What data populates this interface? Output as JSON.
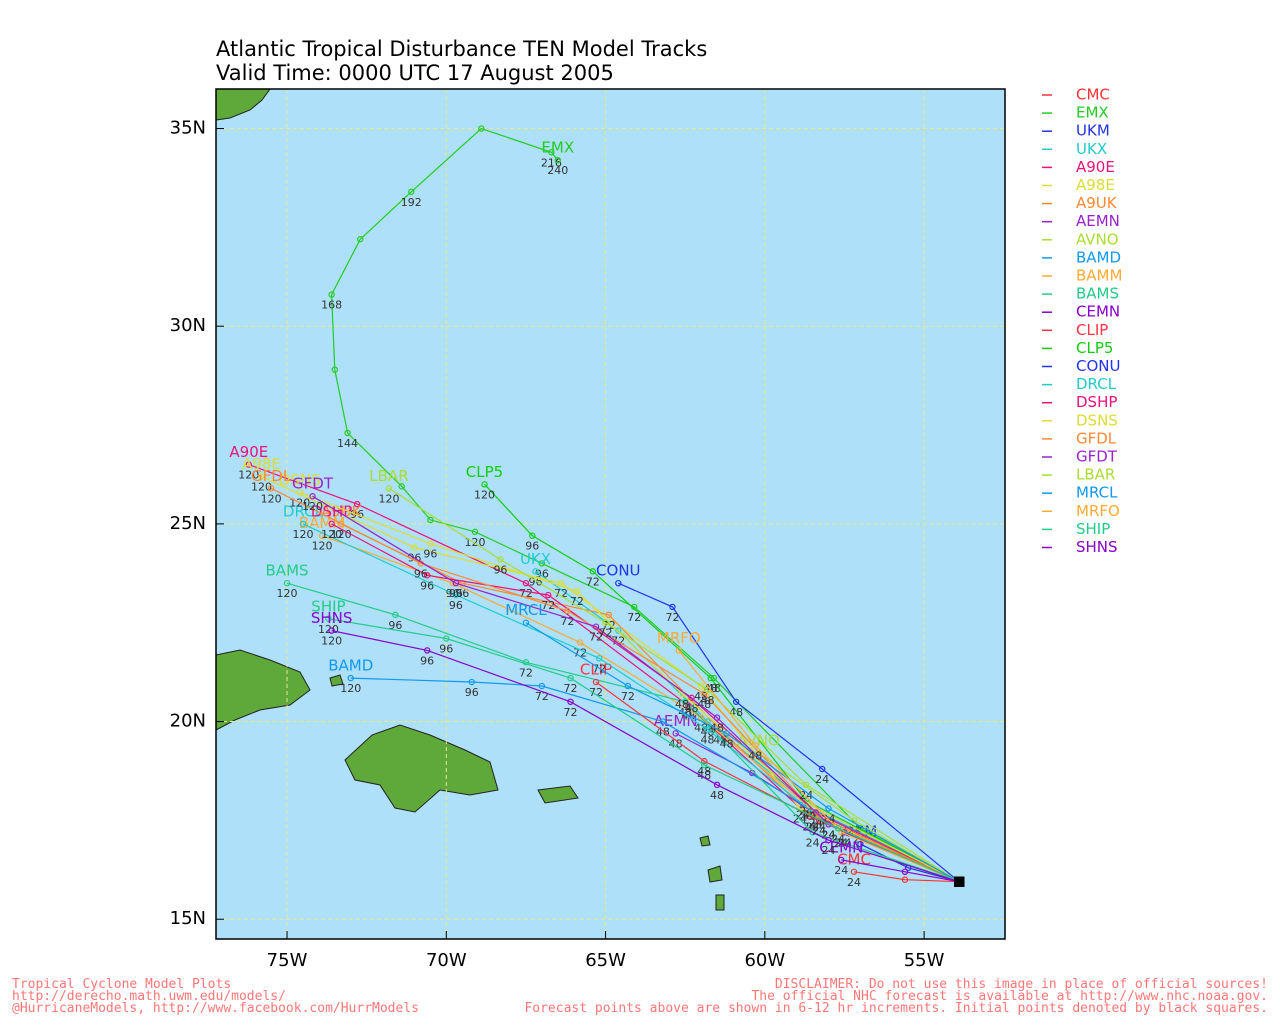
{
  "chart_data": {
    "type": "line",
    "title": "Atlantic Tropical Disturbance TEN Model Tracks",
    "subtitle": "Valid Time: 0000 UTC 17 August 2005",
    "xlim": [
      -77.23,
      -52.46
    ],
    "ylim": [
      14.5,
      36
    ],
    "xticks": [
      {
        "value": -75,
        "label": "75W"
      },
      {
        "value": -70,
        "label": "70W"
      },
      {
        "value": -65,
        "label": "65W"
      },
      {
        "value": -60,
        "label": "60W"
      },
      {
        "value": -55,
        "label": "55W"
      }
    ],
    "yticks": [
      {
        "value": 15,
        "label": "15N"
      },
      {
        "value": 20,
        "label": "20N"
      },
      {
        "value": 25,
        "label": "25N"
      },
      {
        "value": 30,
        "label": "30N"
      },
      {
        "value": 35,
        "label": "35N"
      }
    ],
    "grid": true,
    "legend": "right",
    "series": [
      {
        "name": "CMC",
        "color": "#ff3333",
        "x": [
          -53.9,
          -55.6,
          -57.2
        ],
        "values": [
          15.95,
          16.0,
          16.2
        ],
        "point_labels": [
          null,
          null,
          "24"
        ]
      },
      {
        "name": "EMX",
        "color": "#22cc22",
        "x": [
          -53.9,
          -57.0,
          -61.6,
          -64.1,
          -67.0,
          -69.1,
          -70.5,
          -71.4,
          -73.1,
          -73.5,
          -73.6,
          -72.7,
          -71.1,
          -68.9,
          -66.7,
          -66.5
        ],
        "values": [
          15.95,
          17.3,
          21.1,
          22.9,
          24.0,
          24.8,
          25.1,
          25.95,
          27.3,
          28.9,
          30.8,
          32.2,
          33.4,
          35.0,
          34.4,
          34.2
        ],
        "point_labels": [
          null,
          "24",
          "48",
          "72",
          "96",
          "120",
          null,
          null,
          "144",
          null,
          "168",
          null,
          "192",
          null,
          "216",
          "240"
        ]
      },
      {
        "name": "UKM",
        "color": "#2233dd",
        "x": [
          -53.9,
          -55.5,
          -57.0
        ],
        "values": [
          15.95,
          16.3,
          16.9
        ],
        "point_labels": [
          null,
          null,
          null
        ]
      },
      {
        "name": "UKX",
        "color": "#22cccc",
        "x": [
          -53.9,
          -58.6,
          -61.8,
          -64.6,
          -67.2
        ],
        "values": [
          15.95,
          17.9,
          20.0,
          22.3,
          23.8
        ],
        "point_labels": [
          null,
          "24",
          "48",
          "72",
          "96"
        ]
      },
      {
        "name": "A90E",
        "color": "#ee1177",
        "x": [
          -53.9,
          -58.6,
          -62.4,
          -67.5,
          -72.8,
          -76.2
        ],
        "values": [
          15.95,
          17.6,
          20.4,
          23.5,
          25.5,
          26.5
        ],
        "point_labels": [
          null,
          "24",
          "48",
          "72",
          "96",
          "120"
        ]
      },
      {
        "name": "A98E",
        "color": "#dddd33",
        "x": [
          -53.9,
          -58.9,
          -62.0,
          -66.4,
          -71.0,
          -75.8
        ],
        "values": [
          15.95,
          17.8,
          20.9,
          23.5,
          24.4,
          26.2
        ],
        "point_labels": [
          null,
          "24",
          "48",
          "72",
          "96",
          "120"
        ]
      },
      {
        "name": "A9UK",
        "color": "#ff8833",
        "x": [
          -53.9,
          -58.5,
          -61.4,
          -64.9,
          -69.5,
          -73.3
        ],
        "values": [
          15.95,
          17.6,
          19.8,
          22.7,
          23.5,
          25.0
        ],
        "point_labels": [
          null,
          "24",
          "48",
          "72",
          "96",
          "120"
        ]
      },
      {
        "name": "AEMN",
        "color": "#9922cc",
        "x": [
          -53.9,
          -57.5,
          -60.4,
          -62.8
        ],
        "values": [
          15.95,
          17.2,
          18.7,
          19.7
        ],
        "point_labels": [
          null,
          "24",
          null,
          "48"
        ]
      },
      {
        "name": "AVNO",
        "color": "#aadd33",
        "x": [
          -53.9,
          -57.2,
          -60.2
        ],
        "values": [
          15.95,
          17.5,
          19.2
        ],
        "point_labels": [
          null,
          "24",
          null
        ]
      },
      {
        "name": "BAMD",
        "color": "#1199ee",
        "x": [
          -53.9,
          -58.8,
          -63.2,
          -67.0,
          -69.2,
          -73.0
        ],
        "values": [
          15.95,
          17.9,
          20.0,
          20.9,
          21.0,
          21.1
        ],
        "point_labels": [
          null,
          "24",
          "48",
          "72",
          "96",
          "120"
        ]
      },
      {
        "name": "BAMM",
        "color": "#ffaa33",
        "x": [
          -53.9,
          -58.4,
          -62.0,
          -65.8,
          -69.8,
          -73.9
        ],
        "values": [
          15.95,
          17.7,
          20.1,
          22.0,
          23.5,
          24.7
        ],
        "point_labels": [
          null,
          "24",
          "48",
          "72",
          "96",
          "120"
        ]
      },
      {
        "name": "BAMS",
        "color": "#22cc88",
        "x": [
          -53.9,
          -58.5,
          -62.5,
          -67.5,
          -71.6,
          -75.0
        ],
        "values": [
          15.95,
          17.2,
          20.5,
          21.5,
          22.7,
          23.5
        ],
        "point_labels": [
          null,
          "24",
          "48",
          "72",
          "96",
          "120"
        ]
      },
      {
        "name": "CEMN",
        "color": "#8800cc",
        "x": [
          -53.9,
          -55.6,
          -57.6
        ],
        "values": [
          15.95,
          16.2,
          16.5
        ],
        "point_labels": [
          null,
          null,
          "24"
        ]
      },
      {
        "name": "CLIP",
        "color": "#ff3344",
        "x": [
          -53.9,
          -58.3,
          -61.9,
          -65.3
        ],
        "values": [
          15.95,
          17.5,
          19.0,
          21.0
        ],
        "point_labels": [
          null,
          "24",
          "48",
          "72"
        ]
      },
      {
        "name": "CLP5",
        "color": "#11cc11",
        "x": [
          -53.9,
          -58.7,
          -61.7,
          -65.4,
          -67.3,
          -68.8
        ],
        "values": [
          15.95,
          18.0,
          21.1,
          23.8,
          24.7,
          26.0
        ],
        "point_labels": [
          null,
          "24",
          "48",
          "72",
          "96",
          "120"
        ]
      },
      {
        "name": "CONU",
        "color": "#2233ee",
        "x": [
          -53.9,
          -58.2,
          -60.9,
          -62.9,
          -64.6
        ],
        "values": [
          15.95,
          18.8,
          20.5,
          22.9,
          23.5
        ],
        "point_labels": [
          null,
          "24",
          "48",
          "72",
          null
        ]
      },
      {
        "name": "DRCL",
        "color": "#22cccc",
        "x": [
          -53.9,
          -58.0,
          -61.8,
          -65.2,
          -69.7,
          -74.5
        ],
        "values": [
          15.95,
          17.4,
          19.8,
          21.6,
          23.2,
          25.0
        ],
        "point_labels": [
          null,
          "24",
          "48",
          "72",
          "96",
          "120"
        ]
      },
      {
        "name": "DSHP",
        "color": "#ee1177",
        "x": [
          -53.9,
          -58.4,
          -62.3,
          -66.8,
          -70.6,
          -73.6
        ],
        "values": [
          15.95,
          17.7,
          20.6,
          23.2,
          23.7,
          25.0
        ],
        "point_labels": [
          null,
          "24",
          "48",
          "72",
          "96",
          "120"
        ]
      },
      {
        "name": "DSNS",
        "color": "#dddd33",
        "x": [
          -53.9,
          -58.6,
          -62.6,
          -65.9,
          -70.5,
          -74.6
        ],
        "values": [
          15.95,
          17.9,
          20.7,
          23.3,
          24.5,
          25.8
        ],
        "point_labels": [
          null,
          "24",
          "48",
          "72",
          "96",
          "120"
        ]
      },
      {
        "name": "GFDL",
        "color": "#ff8833",
        "x": [
          -53.9,
          -58.3,
          -61.9,
          -66.2,
          -70.8,
          -75.5
        ],
        "values": [
          15.95,
          17.6,
          20.7,
          22.8,
          24.0,
          25.9
        ],
        "point_labels": [
          null,
          "24",
          "48",
          "72",
          "96",
          "120"
        ]
      },
      {
        "name": "GFDT",
        "color": "#9922cc",
        "x": [
          -53.9,
          -58.0,
          -61.5,
          -65.3,
          -69.7,
          -74.2
        ],
        "values": [
          15.95,
          17.4,
          20.1,
          22.4,
          23.5,
          25.7
        ],
        "point_labels": [
          null,
          "24",
          "48",
          "72",
          "96",
          "120"
        ]
      },
      {
        "name": "LBAR",
        "color": "#aadd33",
        "x": [
          -53.9,
          -58.7,
          -61.8,
          -65.0,
          -68.3,
          -71.8
        ],
        "values": [
          15.95,
          18.4,
          20.8,
          22.5,
          24.1,
          25.9
        ],
        "point_labels": [
          null,
          "24",
          "48",
          "72",
          "96",
          "120"
        ]
      },
      {
        "name": "MRCL",
        "color": "#1199ee",
        "x": [
          -53.9,
          -58.0,
          -61.2,
          -64.3,
          -67.5
        ],
        "values": [
          15.95,
          17.8,
          19.7,
          20.9,
          22.5
        ],
        "point_labels": [
          null,
          "24",
          "48",
          "72",
          null
        ]
      },
      {
        "name": "MRFO",
        "color": "#ffaa33",
        "x": [
          -53.9,
          -57.6,
          -60.3,
          -62.7
        ],
        "values": [
          15.95,
          17.2,
          19.4,
          21.8
        ],
        "point_labels": [
          null,
          "24",
          "48",
          null
        ]
      },
      {
        "name": "SHIP",
        "color": "#22cc88",
        "x": [
          -53.9,
          -57.7,
          -61.9,
          -66.1,
          -70.0,
          -73.7
        ],
        "values": [
          15.95,
          17.3,
          18.9,
          21.1,
          22.1,
          22.6
        ],
        "point_labels": [
          null,
          "24",
          "48",
          "72",
          "96",
          "120"
        ]
      },
      {
        "name": "SHNS",
        "color": "#8800cc",
        "x": [
          -53.9,
          -58.0,
          -61.5,
          -66.1,
          -70.6,
          -73.6
        ],
        "values": [
          15.95,
          17.0,
          18.4,
          20.5,
          21.8,
          22.3
        ],
        "point_labels": [
          null,
          "24",
          "48",
          "72",
          "96",
          "120"
        ]
      }
    ]
  },
  "footer": {
    "left": [
      "Tropical Cyclone Model Plots",
      "http://derecho.math.uwm.edu/models/",
      "@HurricaneModels, http://www.facebook.com/HurrModels"
    ],
    "right": [
      "DISCLAIMER: Do not use this image in place of official sources!",
      "The official NHC forecast is available at http://www.nhc.noaa.gov.",
      "Forecast points above are shown in 6-12 hr increments. Initial points denoted by black squares."
    ]
  }
}
